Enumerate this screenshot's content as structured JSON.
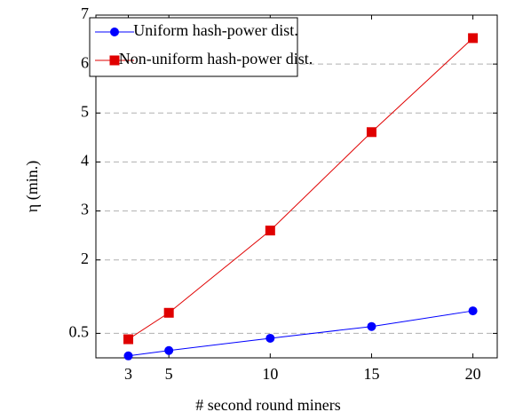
{
  "chart_data": {
    "type": "line",
    "x_label": "# second round miners",
    "y_label": "η (min.)",
    "x": [
      3,
      5,
      10,
      15,
      20
    ],
    "series": [
      {
        "name": "Uniform hash-power dist.",
        "color": "#0000ff",
        "marker": "circle",
        "values": [
          0.04,
          0.15,
          0.4,
          0.64,
          0.96
        ]
      },
      {
        "name": "Non-uniform hash-power dist.",
        "color": "#e00000",
        "marker": "square",
        "values": [
          0.38,
          0.92,
          2.6,
          4.61,
          6.53
        ]
      }
    ],
    "xlim": [
      1.4,
      21.2
    ],
    "xticks": [
      3,
      5,
      10,
      15,
      20
    ],
    "ylim": [
      0,
      7
    ],
    "yticks": [
      0.5,
      2,
      3,
      4,
      5,
      6,
      7
    ],
    "grid": true,
    "legend": "upper left"
  }
}
